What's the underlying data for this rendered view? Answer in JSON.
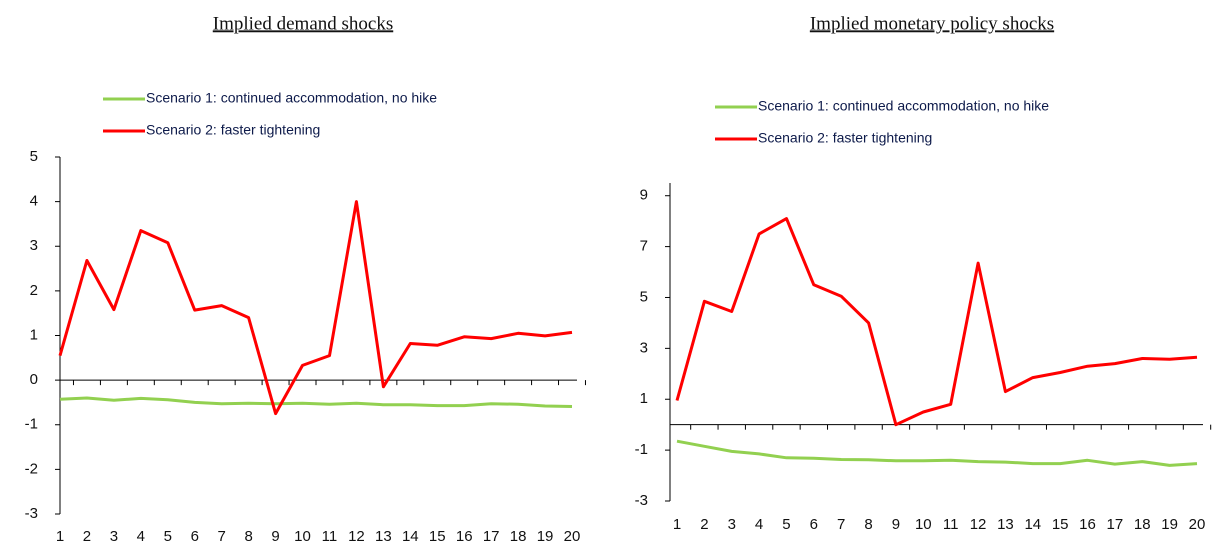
{
  "chart_data": [
    {
      "type": "line",
      "title": "Implied demand shocks",
      "categories": [
        "1",
        "2",
        "3",
        "4",
        "5",
        "6",
        "7",
        "8",
        "9",
        "10",
        "11",
        "12",
        "13",
        "14",
        "15",
        "16",
        "17",
        "18",
        "19",
        "20"
      ],
      "series": [
        {
          "name": "Scenario 1: continued accommodation, no hike",
          "color": "#92d050",
          "values": [
            -0.43,
            -0.4,
            -0.45,
            -0.41,
            -0.44,
            -0.5,
            -0.53,
            -0.52,
            -0.53,
            -0.52,
            -0.54,
            -0.52,
            -0.55,
            -0.55,
            -0.57,
            -0.57,
            -0.53,
            -0.54,
            -0.58,
            -0.59
          ]
        },
        {
          "name": "Scenario 2: faster tightening",
          "color": "#ff0000",
          "values": [
            0.55,
            2.68,
            1.58,
            3.35,
            3.08,
            1.57,
            1.67,
            1.4,
            -0.75,
            0.33,
            0.55,
            4.0,
            -0.15,
            0.82,
            0.78,
            0.97,
            0.93,
            1.05,
            0.99,
            1.07
          ]
        }
      ],
      "ylim": [
        -3,
        5
      ],
      "yticks": [
        -3,
        -2,
        -1,
        0,
        1,
        2,
        3,
        4,
        5
      ]
    },
    {
      "type": "line",
      "title": "Implied monetary policy shocks",
      "categories": [
        "1",
        "2",
        "3",
        "4",
        "5",
        "6",
        "7",
        "8",
        "9",
        "10",
        "11",
        "12",
        "13",
        "14",
        "15",
        "16",
        "17",
        "18",
        "19",
        "20"
      ],
      "series": [
        {
          "name": "Scenario 1: continued accommodation, no hike",
          "color": "#92d050",
          "values": [
            -0.65,
            -0.85,
            -1.05,
            -1.15,
            -1.3,
            -1.32,
            -1.37,
            -1.38,
            -1.42,
            -1.42,
            -1.4,
            -1.45,
            -1.47,
            -1.53,
            -1.53,
            -1.4,
            -1.55,
            -1.45,
            -1.6,
            -1.53
          ]
        },
        {
          "name": "Scenario 2: faster tightening",
          "color": "#ff0000",
          "values": [
            0.95,
            4.85,
            4.45,
            7.5,
            8.1,
            5.5,
            5.05,
            4.0,
            0.0,
            0.5,
            0.8,
            6.35,
            1.3,
            1.85,
            2.05,
            2.3,
            2.4,
            2.6,
            2.57,
            2.65
          ]
        }
      ],
      "ylim": [
        -3,
        9.5
      ],
      "yticks": [
        -3,
        -1,
        1,
        3,
        5,
        7,
        9
      ]
    }
  ]
}
